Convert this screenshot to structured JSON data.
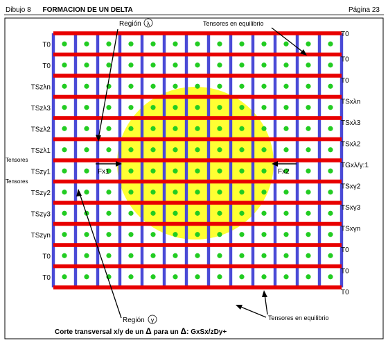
{
  "header": {
    "figure_number": "Dibujo 8",
    "title": "FORMACION DE UN DELTA",
    "page": "Página 23"
  },
  "diagram": {
    "left_labels": [
      "T0",
      "T0",
      "TSzλn",
      "TSzλ3",
      "TSzλ2",
      "TSzλ1",
      "TSzγ1",
      "TSzγ2",
      "TSzγ3",
      "TSzγn",
      "T0",
      "T0"
    ],
    "right_labels": [
      "T0",
      "T0",
      "T0",
      "TSxλn",
      "TSxλ3",
      "TSxλ2",
      "TGxλ/γ:1",
      "TSxγ2",
      "TSxγ3",
      "TSxγn",
      "T0",
      "T0",
      "T0"
    ],
    "side_prefix": "Tensores",
    "region_top_label": "Región",
    "region_top_symbol": "λ",
    "region_bottom_label": "Región",
    "region_bottom_symbol": "γ",
    "tension_label_top": "Tensores en equilibrio",
    "tension_label_bottom": "Tensores en equilibrio",
    "force_left": "Fx1",
    "force_right": "Fx2",
    "caption_prefix": "Corte transversal x/y de un",
    "caption_mid": "para un",
    "caption_formula": "GxSx/zDy+",
    "delta_symbol": "Δ",
    "colors": {
      "horizontal_bars": "#e80000",
      "vertical_bars": "#4a4ad6",
      "dots": "#22cc22",
      "delta_region": "#ffff33"
    }
  }
}
